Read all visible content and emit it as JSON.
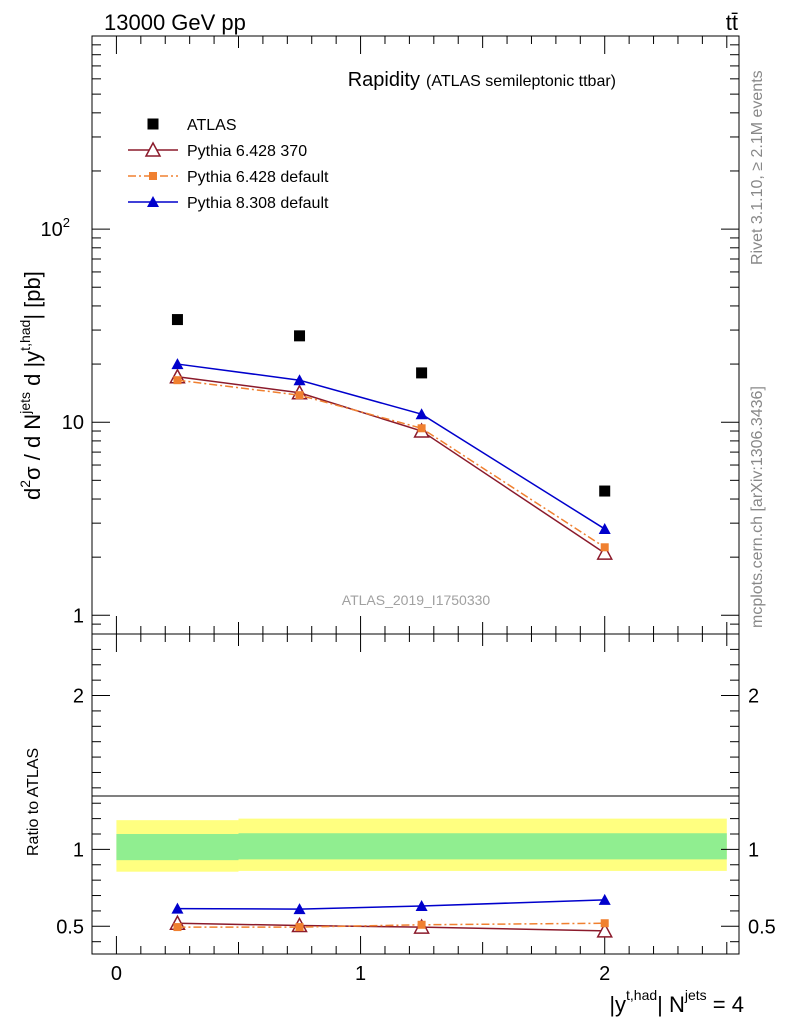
{
  "header": {
    "energy_label": "13000 GeV pp",
    "process_label": "tt̄"
  },
  "side_labels": {
    "rivet": "Rivet 3.1.10, ≥ 2.1M events",
    "mcplots": "mcplots.cern.ch [arXiv:1306.3436]"
  },
  "chart_data": [
    {
      "type": "line",
      "scale": "log",
      "title": "Rapidity",
      "subtitle": "(ATLAS semileptonic ttbar)",
      "analysis_tag": "ATLAS_2019_I1750330",
      "ylabel": {
        "main": "d",
        "sup_2": "2",
        "sigma": "σ / d N",
        "sup_jets": "jets",
        "mid": " d |y",
        "sup_thad": "t,had",
        "tail": "| [pb]"
      },
      "yticks": [
        {
          "value": 1,
          "label": "1"
        },
        {
          "value": 10,
          "label": "10"
        },
        {
          "value": 100,
          "label": "10",
          "sup": "2"
        }
      ],
      "ylim": [
        0.8,
        1000
      ],
      "xlim": [
        -0.1,
        2.55
      ],
      "x": [
        0.25,
        0.75,
        1.25,
        2.0
      ],
      "legend_position": "top-left",
      "series": [
        {
          "name": "ATLAS",
          "color": "#000000",
          "marker": "square",
          "values": [
            34,
            28,
            18,
            4.4
          ]
        },
        {
          "name": "Pythia 6.428 370",
          "color": "#8b1a2b",
          "marker": "triangle-open",
          "values": [
            17.2,
            14.2,
            9.0,
            2.1
          ]
        },
        {
          "name": "Pythia 6.428 default",
          "color": "#f08030",
          "marker": "square-small",
          "dash": "dashdot",
          "values": [
            16.5,
            13.8,
            9.3,
            2.25
          ]
        },
        {
          "name": "Pythia 8.308 default",
          "color": "#0000cc",
          "marker": "triangle",
          "values": [
            20.0,
            16.5,
            11.0,
            2.8
          ]
        }
      ]
    },
    {
      "type": "line",
      "scale": "linear",
      "ylabel": "Ratio to ATLAS",
      "xlabel": {
        "pre": "|y",
        "sup_thad": "t,had",
        "mid": "| N",
        "sup_jets": "jets",
        "tail": " = 4"
      },
      "ylim": [
        0.32,
        2.4
      ],
      "xlim": [
        -0.1,
        2.55
      ],
      "yticks": [
        {
          "value": 0.5,
          "label": "0.5"
        },
        {
          "value": 1,
          "label": "1"
        },
        {
          "value": 2,
          "label": "2"
        }
      ],
      "xticks": [
        {
          "value": 0,
          "label": "0"
        },
        {
          "value": 1,
          "label": "1"
        },
        {
          "value": 2,
          "label": "2"
        }
      ],
      "bands": [
        {
          "color": "#ffff80",
          "segments": [
            {
              "x0": 0,
              "x1": 0.5,
              "lo": 0.855,
              "hi": 1.19
            },
            {
              "x0": 0.5,
              "x1": 2.5,
              "lo": 0.86,
              "hi": 1.2
            }
          ]
        },
        {
          "color": "#90ee90",
          "segments": [
            {
              "x0": 0,
              "x1": 0.5,
              "lo": 0.93,
              "hi": 1.1
            },
            {
              "x0": 0.5,
              "x1": 2.5,
              "lo": 0.935,
              "hi": 1.105
            }
          ]
        }
      ],
      "x": [
        0.25,
        0.75,
        1.25,
        2.0
      ],
      "series": [
        {
          "name": "Pythia 6.428 370",
          "color": "#8b1a2b",
          "marker": "triangle-open",
          "values": [
            0.52,
            0.505,
            0.495,
            0.47
          ]
        },
        {
          "name": "Pythia 6.428 default",
          "color": "#f08030",
          "marker": "square-small",
          "dash": "dashdot",
          "values": [
            0.495,
            0.495,
            0.51,
            0.52
          ]
        },
        {
          "name": "Pythia 8.308 default",
          "color": "#0000cc",
          "marker": "triangle",
          "values": [
            0.615,
            0.612,
            0.632,
            0.672
          ]
        }
      ]
    }
  ]
}
